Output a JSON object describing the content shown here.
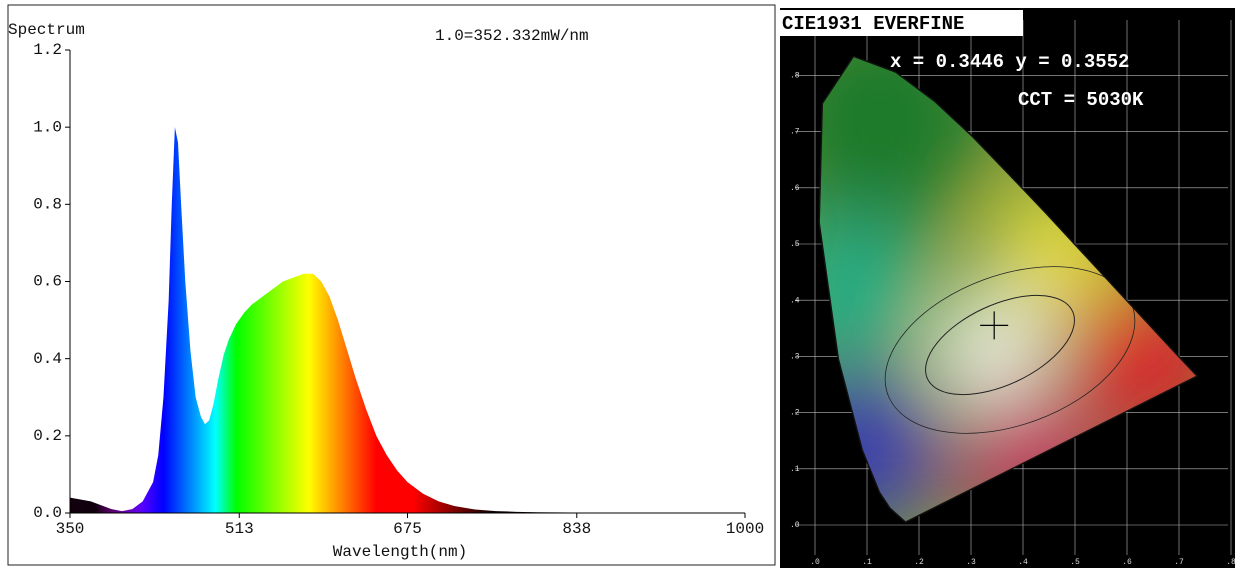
{
  "chart_data": {
    "type": "area",
    "y_label": "Spectrum",
    "annotation": "1.0=352.332mW/nm",
    "x_label": "Wavelength(nm)",
    "x": [
      350,
      360,
      370,
      380,
      390,
      400,
      410,
      420,
      430,
      435,
      440,
      445,
      448,
      451,
      454,
      457,
      461,
      466,
      471,
      476,
      480,
      484,
      488,
      493,
      498,
      503,
      510,
      518,
      525,
      535,
      545,
      555,
      565,
      575,
      584,
      592,
      600,
      608,
      616,
      625,
      635,
      645,
      655,
      665,
      675,
      690,
      705,
      720,
      740,
      760,
      780,
      800,
      850,
      900,
      1000
    ],
    "values": [
      0.04,
      0.035,
      0.03,
      0.02,
      0.01,
      0.005,
      0.01,
      0.03,
      0.08,
      0.15,
      0.3,
      0.55,
      0.8,
      1.0,
      0.96,
      0.8,
      0.6,
      0.42,
      0.3,
      0.25,
      0.23,
      0.24,
      0.28,
      0.35,
      0.41,
      0.45,
      0.49,
      0.52,
      0.54,
      0.56,
      0.58,
      0.6,
      0.61,
      0.62,
      0.62,
      0.6,
      0.56,
      0.5,
      0.43,
      0.35,
      0.27,
      0.2,
      0.15,
      0.11,
      0.08,
      0.05,
      0.03,
      0.018,
      0.009,
      0.005,
      0.003,
      0.002,
      0.001,
      0,
      0
    ],
    "xlim": [
      350,
      1000
    ],
    "xticks": [
      350,
      513,
      675,
      838,
      1000
    ],
    "ylim": [
      0,
      1.2
    ],
    "yticks": [
      {
        "value": 0,
        "label": "0.0"
      },
      0.2,
      0.4,
      0.6,
      0.8,
      {
        "value": 1,
        "label": "1.0"
      },
      1.2
    ]
  },
  "cie": {
    "title": "CIE1931 EVERFINE",
    "coordinates": "x = 0.3446 y = 0.3552",
    "cct": "CCT = 5030K",
    "x": 0.3446,
    "y": 0.3552,
    "xticks": [
      ".0",
      ".1",
      ".2",
      ".3",
      ".4",
      ".5",
      ".6",
      ".7",
      ".8"
    ],
    "yticks": [
      ".0",
      ".1",
      ".2",
      ".3",
      ".4",
      ".5",
      ".6",
      ".7",
      ".8"
    ]
  }
}
